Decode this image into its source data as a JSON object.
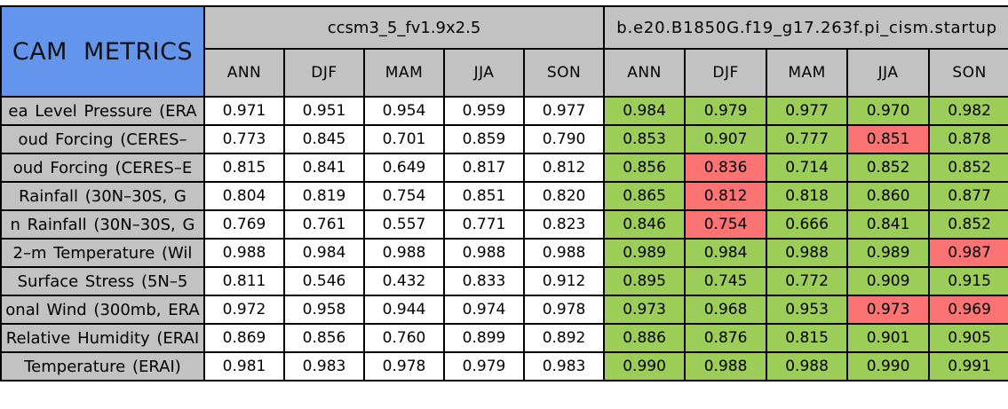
{
  "title": "CAM METRICS",
  "colors": {
    "title_bg_blue": "#6495ED",
    "header_bg_gray": "#C2C2C2",
    "model1_cell_bg": "#FFFFFF",
    "better_green": "#9BCD58",
    "worse_red": "#FB7373",
    "grid_border": "#000000"
  },
  "chart_data": {
    "type": "table",
    "title": "CAM METRICS",
    "legend_note": "green = second case better or equal, red = second case worse (cell background colors in right block)",
    "column_groups": [
      {
        "name": "ccsm3_5_fv1.9x2.5",
        "columns": [
          "ANN",
          "DJF",
          "MAM",
          "JJA",
          "SON"
        ]
      },
      {
        "name": "b.e20.B1850G.f19_g17.263f.pi_cism.startup",
        "columns": [
          "ANN",
          "DJF",
          "MAM",
          "JJA",
          "SON"
        ]
      }
    ],
    "rows": [
      {
        "label": "ea Level Pressure (ERA",
        "group1_values": [
          0.971,
          0.951,
          0.954,
          0.959,
          0.977
        ],
        "group2_values": [
          0.984,
          0.979,
          0.977,
          0.97,
          0.982
        ],
        "group2_cell_colors": [
          "green",
          "green",
          "green",
          "green",
          "green"
        ]
      },
      {
        "label": "oud Forcing (CERES–",
        "group1_values": [
          0.773,
          0.845,
          0.701,
          0.859,
          0.79
        ],
        "group2_values": [
          0.853,
          0.907,
          0.777,
          0.851,
          0.878
        ],
        "group2_cell_colors": [
          "green",
          "green",
          "green",
          "red",
          "green"
        ]
      },
      {
        "label": "oud Forcing (CERES–E",
        "group1_values": [
          0.815,
          0.841,
          0.649,
          0.817,
          0.812
        ],
        "group2_values": [
          0.856,
          0.836,
          0.714,
          0.852,
          0.852
        ],
        "group2_cell_colors": [
          "green",
          "red",
          "green",
          "green",
          "green"
        ]
      },
      {
        "label": "Rainfall (30N–30S, G",
        "group1_values": [
          0.804,
          0.819,
          0.754,
          0.851,
          0.82
        ],
        "group2_values": [
          0.865,
          0.812,
          0.818,
          0.86,
          0.877
        ],
        "group2_cell_colors": [
          "green",
          "red",
          "green",
          "green",
          "green"
        ]
      },
      {
        "label": "n Rainfall (30N–30S, G",
        "group1_values": [
          0.769,
          0.761,
          0.557,
          0.771,
          0.823
        ],
        "group2_values": [
          0.846,
          0.754,
          0.666,
          0.841,
          0.852
        ],
        "group2_cell_colors": [
          "green",
          "red",
          "green",
          "green",
          "green"
        ]
      },
      {
        "label": "2–m Temperature (Wil",
        "group1_values": [
          0.988,
          0.984,
          0.988,
          0.988,
          0.988
        ],
        "group2_values": [
          0.989,
          0.984,
          0.988,
          0.989,
          0.987
        ],
        "group2_cell_colors": [
          "green",
          "green",
          "green",
          "green",
          "red"
        ]
      },
      {
        "label": "Surface Stress (5N–5",
        "group1_values": [
          0.811,
          0.546,
          0.432,
          0.833,
          0.912
        ],
        "group2_values": [
          0.895,
          0.745,
          0.772,
          0.909,
          0.915
        ],
        "group2_cell_colors": [
          "green",
          "green",
          "green",
          "green",
          "green"
        ]
      },
      {
        "label": "onal Wind (300mb, ERA",
        "group1_values": [
          0.972,
          0.958,
          0.944,
          0.974,
          0.978
        ],
        "group2_values": [
          0.973,
          0.968,
          0.953,
          0.973,
          0.969
        ],
        "group2_cell_colors": [
          "green",
          "green",
          "green",
          "red",
          "red"
        ]
      },
      {
        "label": "Relative Humidity (ERAI",
        "group1_values": [
          0.869,
          0.856,
          0.76,
          0.899,
          0.892
        ],
        "group2_values": [
          0.886,
          0.876,
          0.815,
          0.901,
          0.905
        ],
        "group2_cell_colors": [
          "green",
          "green",
          "green",
          "green",
          "green"
        ]
      },
      {
        "label": "Temperature (ERAI)",
        "group1_values": [
          0.981,
          0.983,
          0.978,
          0.979,
          0.983
        ],
        "group2_values": [
          0.99,
          0.988,
          0.988,
          0.99,
          0.991
        ],
        "group2_cell_colors": [
          "green",
          "green",
          "green",
          "green",
          "green"
        ]
      }
    ]
  }
}
